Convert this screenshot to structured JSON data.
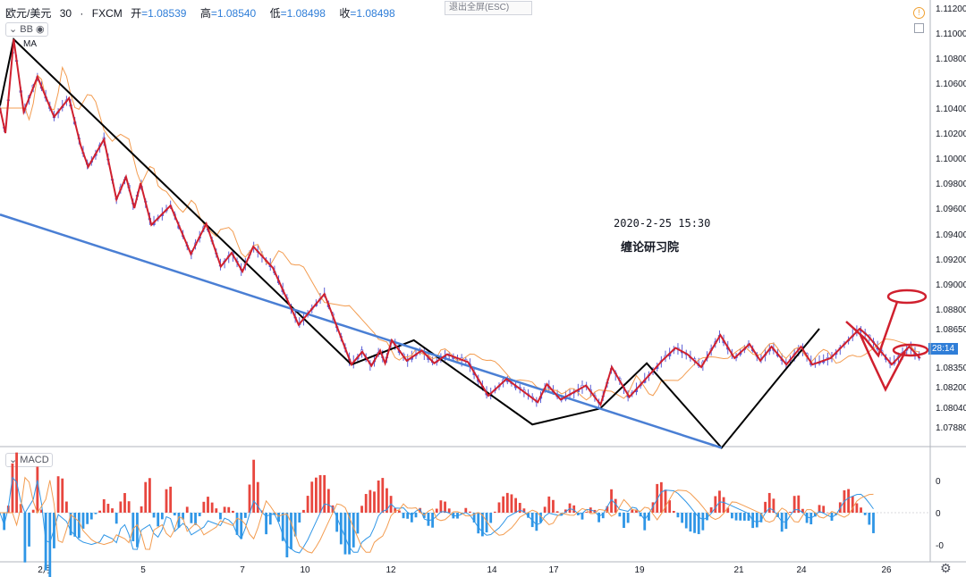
{
  "header": {
    "symbol": "欧元/美元",
    "interval": "30",
    "source": "FXCM",
    "open_label": "开",
    "open": "=1.08539",
    "high_label": "高",
    "high": "=1.08540",
    "low_label": "低",
    "low": "=1.08498",
    "close_label": "收",
    "close": "=1.08498"
  },
  "indicators": {
    "bb": "BB",
    "ma": "MA",
    "macd": "MACD"
  },
  "exit_fullscreen": "退出全屏(ESC)",
  "annotation_date": "2020-2-25 15:30",
  "annotation_watermark": "缠论研习院",
  "countdown": "28:14",
  "colors": {
    "candle": "#5b5fd6",
    "ma": "#f39c50",
    "stroke_red": "#d0202e",
    "trend_black": "#000000",
    "trend_blue": "#4a7fd4",
    "macd_up": "#e8463e",
    "macd_down": "#2f96e6"
  },
  "chart_data": {
    "type": "line",
    "y_ticks": [
      "1.11200",
      "1.11000",
      "1.10800",
      "1.10600",
      "1.10400",
      "1.10200",
      "1.10000",
      "1.09800",
      "1.09600",
      "1.09400",
      "1.09200",
      "1.09000",
      "1.08800",
      "1.08650",
      "1.08350",
      "1.08200",
      "1.08040",
      "1.07880"
    ],
    "x_ticks": [
      "2月",
      "5",
      "7",
      "10",
      "12",
      "14",
      "17",
      "19",
      "21",
      "24",
      "26"
    ],
    "ylim": [
      1.0775,
      1.1122
    ],
    "stroke_points": [
      [
        0,
        1.104
      ],
      [
        1.3,
        1.102
      ],
      [
        3.3,
        1.1095
      ],
      [
        5.7,
        1.1037
      ],
      [
        9.0,
        1.1065
      ],
      [
        13.0,
        1.1033
      ],
      [
        16.6,
        1.1048
      ],
      [
        19.4,
        1.101
      ],
      [
        21.2,
        1.0993
      ],
      [
        25.0,
        1.1015
      ],
      [
        28.0,
        1.0967
      ],
      [
        30.3,
        1.0985
      ],
      [
        32.3,
        1.096
      ],
      [
        33.8,
        1.098
      ],
      [
        36.4,
        1.0947
      ],
      [
        41.0,
        1.0962
      ],
      [
        45.9,
        1.0924
      ],
      [
        49.6,
        1.0948
      ],
      [
        53.1,
        1.0914
      ],
      [
        55.7,
        1.0925
      ],
      [
        58.3,
        1.091
      ],
      [
        60.9,
        1.093
      ],
      [
        65.6,
        1.0913
      ],
      [
        71.8,
        1.0868
      ],
      [
        78.0,
        1.0892
      ],
      [
        84.5,
        1.0837
      ],
      [
        87.1,
        1.0847
      ],
      [
        89.3,
        1.0836
      ],
      [
        91.4,
        1.0848
      ],
      [
        92.6,
        1.0838
      ],
      [
        94.2,
        1.0856
      ],
      [
        97.8,
        1.084
      ],
      [
        101.4,
        1.0848
      ],
      [
        104.4,
        1.0838
      ],
      [
        107.5,
        1.0845
      ],
      [
        112.5,
        1.0839
      ],
      [
        117.4,
        1.0813
      ],
      [
        121.8,
        1.0826
      ],
      [
        129.3,
        1.0808
      ],
      [
        131.5,
        1.0822
      ],
      [
        134.8,
        1.081
      ],
      [
        140.9,
        1.0821
      ],
      [
        144.4,
        1.0806
      ],
      [
        147.1,
        1.0835
      ],
      [
        151.3,
        1.0812
      ],
      [
        154.7,
        1.0824
      ],
      [
        159.2,
        1.084
      ],
      [
        162.4,
        1.085
      ],
      [
        165.3,
        1.0845
      ],
      [
        168.6,
        1.0835
      ],
      [
        173.2,
        1.086
      ],
      [
        176.6,
        1.0842
      ],
      [
        180.2,
        1.0853
      ],
      [
        182.8,
        1.084
      ],
      [
        185.5,
        1.0851
      ],
      [
        189.1,
        1.0837
      ],
      [
        192.6,
        1.0851
      ],
      [
        195.3,
        1.0837
      ],
      [
        199.7,
        1.0842
      ],
      [
        206.7,
        1.0865
      ],
      [
        208.8,
        1.0859
      ],
      [
        211.6,
        1.0848
      ],
      [
        214.4,
        1.0837
      ],
      [
        218.6,
        1.0851
      ],
      [
        221.2,
        1.0842
      ]
    ],
    "trend_lines": [
      {
        "color": "black",
        "points": [
          [
            0,
            1.1042
          ],
          [
            3.3,
            1.1095
          ],
          [
            84.5,
            1.0837
          ]
        ]
      },
      {
        "color": "black",
        "points": [
          [
            84.5,
            1.0837
          ],
          [
            99.5,
            1.0856
          ],
          [
            128.0,
            1.079
          ],
          [
            144.3,
            1.0803
          ],
          [
            155.5,
            1.0838
          ],
          [
            173.5,
            1.0771
          ],
          [
            187.0,
            1.0826
          ],
          [
            197.0,
            1.0865
          ]
        ]
      },
      {
        "color": "blue",
        "points": [
          [
            0,
            1.0955
          ],
          [
            173.5,
            1.0771
          ]
        ]
      }
    ],
    "macd_ticks": [
      "0",
      "0",
      "-0"
    ]
  }
}
